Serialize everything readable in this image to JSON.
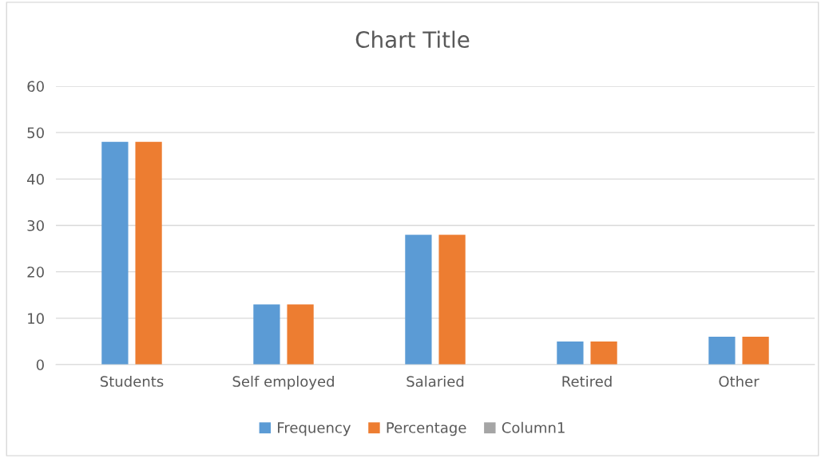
{
  "chart_data": {
    "type": "bar",
    "title": "Chart Title",
    "categories": [
      "Students",
      "Self employed",
      "Salaried",
      "Retired",
      "Other"
    ],
    "series": [
      {
        "name": "Frequency",
        "color": "#5b9bd5",
        "values": [
          48,
          13,
          28,
          5,
          6
        ]
      },
      {
        "name": "Percentage",
        "color": "#ed7d31",
        "values": [
          48,
          13,
          28,
          5,
          6
        ]
      },
      {
        "name": "Column1",
        "color": "#a5a5a5",
        "values": [
          null,
          null,
          null,
          null,
          null
        ]
      }
    ],
    "ylim": [
      0,
      60
    ],
    "yticks": [
      0,
      10,
      20,
      30,
      40,
      50,
      60
    ],
    "grid": "y",
    "legend": "bottom"
  }
}
